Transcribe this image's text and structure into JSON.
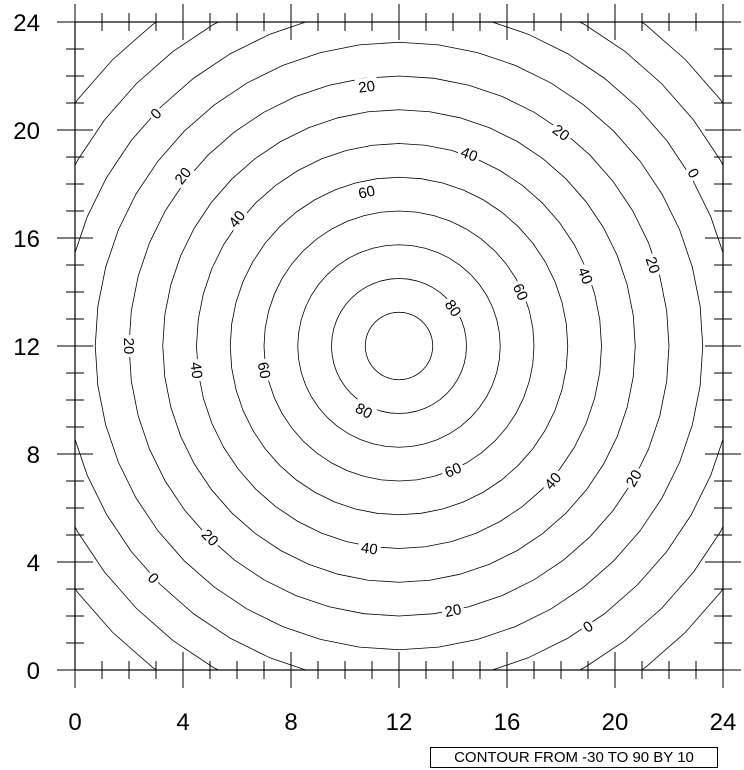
{
  "chart_data": {
    "type": "contour",
    "x_range": [
      0,
      24
    ],
    "y_range": [
      0,
      24
    ],
    "x_ticks": [
      0,
      4,
      8,
      12,
      16,
      20,
      24
    ],
    "y_ticks": [
      0,
      4,
      8,
      12,
      16,
      20,
      24
    ],
    "x_tick_labels": [
      "0",
      "4",
      "8",
      "12",
      "16",
      "20",
      "24"
    ],
    "y_tick_labels": [
      "0",
      "4",
      "8",
      "12",
      "16",
      "20",
      "24"
    ],
    "minor_tick_step": 1,
    "center": [
      12,
      12
    ],
    "peak_value": 90,
    "contour_levels": [
      -30,
      -20,
      -10,
      0,
      10,
      20,
      30,
      40,
      50,
      60,
      70,
      80,
      90
    ],
    "contour_spacing_data_units": 1.25,
    "contour_labels": [
      {
        "text": "20",
        "x": 10.8,
        "y": 21.6
      },
      {
        "text": "0",
        "x": 3.0,
        "y": 20.6
      },
      {
        "text": "20",
        "x": 18.0,
        "y": 19.9
      },
      {
        "text": "40",
        "x": 14.6,
        "y": 19.1
      },
      {
        "text": "0",
        "x": 22.9,
        "y": 18.4
      },
      {
        "text": "20",
        "x": 4.0,
        "y": 18.3
      },
      {
        "text": "60",
        "x": 10.8,
        "y": 17.7
      },
      {
        "text": "40",
        "x": 6.0,
        "y": 16.7
      },
      {
        "text": "20",
        "x": 21.4,
        "y": 15.0
      },
      {
        "text": "40",
        "x": 18.9,
        "y": 14.6
      },
      {
        "text": "60",
        "x": 16.5,
        "y": 14.0
      },
      {
        "text": "80",
        "x": 14.0,
        "y": 13.4
      },
      {
        "text": "20",
        "x": 2.0,
        "y": 12.0
      },
      {
        "text": "40",
        "x": 4.5,
        "y": 11.1
      },
      {
        "text": "60",
        "x": 7.0,
        "y": 11.1
      },
      {
        "text": "80",
        "x": 10.7,
        "y": 9.6
      },
      {
        "text": "60",
        "x": 14.0,
        "y": 7.4
      },
      {
        "text": "40",
        "x": 17.7,
        "y": 7.0
      },
      {
        "text": "20",
        "x": 20.7,
        "y": 7.1
      },
      {
        "text": "20",
        "x": 5.0,
        "y": 4.9
      },
      {
        "text": "40",
        "x": 10.9,
        "y": 4.5
      },
      {
        "text": "0",
        "x": 2.9,
        "y": 3.4
      },
      {
        "text": "20",
        "x": 14.0,
        "y": 2.2
      },
      {
        "text": "0",
        "x": 19.0,
        "y": 1.6
      }
    ],
    "info_label": "CONTOUR FROM -30 TO 90 BY 10"
  }
}
